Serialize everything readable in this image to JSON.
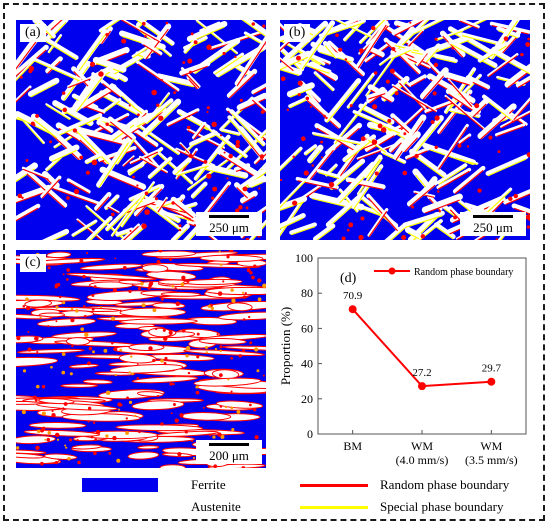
{
  "panels": {
    "a": {
      "tag": "(a)",
      "scale": "250 μm"
    },
    "b": {
      "tag": "(b)",
      "scale": "250 μm"
    },
    "c": {
      "tag": "(c)",
      "scale": "200 μm"
    },
    "d": {
      "tag": "(d)"
    }
  },
  "legend": {
    "ferrite": "Ferrite",
    "austenite": "Austenite",
    "random": "Random phase boundary",
    "special": "Special phase boundary"
  },
  "colors": {
    "ferrite": "#0000ee",
    "austenite": "#ffffff",
    "random": "#ff0000",
    "special": "#ffff00"
  },
  "chart_data": {
    "type": "line",
    "categories": [
      "BM",
      "WM\n(4.0 mm/s)",
      "WM\n(3.5 mm/s)"
    ],
    "series": [
      {
        "name": "Random phase boundary",
        "values": [
          70.9,
          27.2,
          29.7
        ],
        "labels": [
          "70.9",
          "27.2",
          "29.7"
        ]
      }
    ],
    "ylabel": "Proportion (%)",
    "ylim": [
      0,
      100
    ],
    "yticks": [
      0,
      20,
      40,
      60,
      80,
      100
    ],
    "grid": false,
    "legend_position": "top"
  }
}
